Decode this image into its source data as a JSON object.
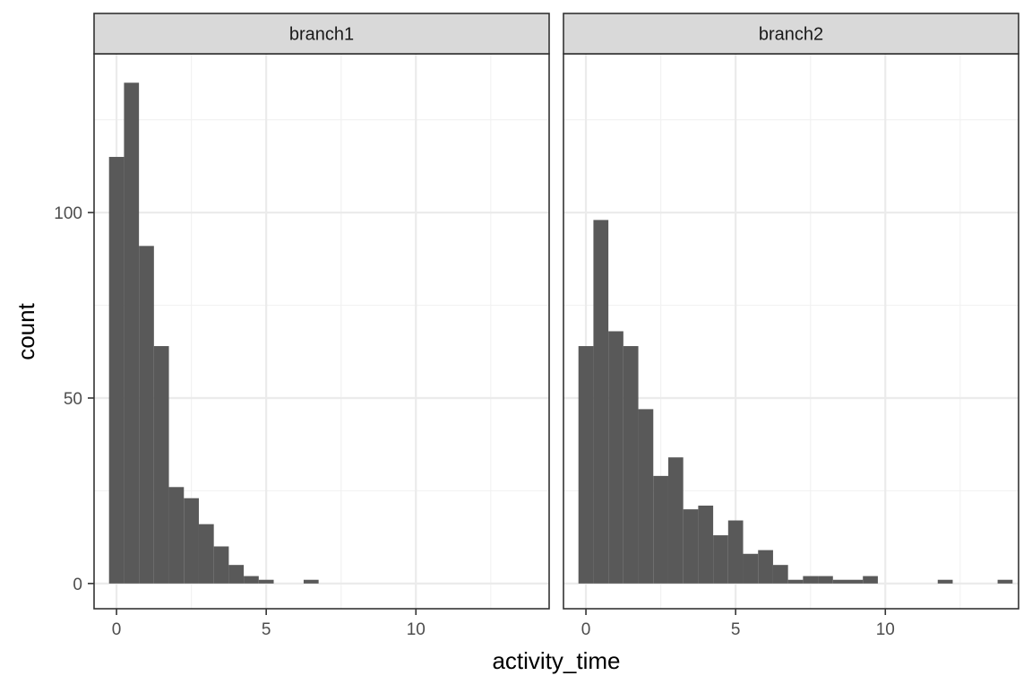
{
  "chart_data": {
    "type": "bar",
    "subtype": "faceted-histogram",
    "xlabel": "activity_time",
    "ylabel": "count",
    "xlim": [
      -0.75,
      14.45
    ],
    "ylim": [
      -6.8,
      142.8
    ],
    "x_ticks": [
      0,
      5,
      10
    ],
    "y_ticks": [
      0,
      50,
      100
    ],
    "bin_width": 0.5,
    "grid": true,
    "bar_color": "#595959",
    "strip_fill": "#d9d9d9",
    "panel_border": "#333333",
    "grid_major_color": "#ebebeb",
    "grid_minor_color": "#f2f2f2",
    "facets": [
      {
        "name": "branch1",
        "bins": [
          {
            "x": 0.0,
            "count": 115
          },
          {
            "x": 0.5,
            "count": 135
          },
          {
            "x": 1.0,
            "count": 91
          },
          {
            "x": 1.5,
            "count": 64
          },
          {
            "x": 2.0,
            "count": 26
          },
          {
            "x": 2.5,
            "count": 23
          },
          {
            "x": 3.0,
            "count": 16
          },
          {
            "x": 3.5,
            "count": 10
          },
          {
            "x": 4.0,
            "count": 5
          },
          {
            "x": 4.5,
            "count": 2
          },
          {
            "x": 5.0,
            "count": 1
          },
          {
            "x": 5.5,
            "count": 0
          },
          {
            "x": 6.0,
            "count": 0
          },
          {
            "x": 6.5,
            "count": 1
          }
        ]
      },
      {
        "name": "branch2",
        "bins": [
          {
            "x": 0.0,
            "count": 64
          },
          {
            "x": 0.5,
            "count": 98
          },
          {
            "x": 1.0,
            "count": 68
          },
          {
            "x": 1.5,
            "count": 64
          },
          {
            "x": 2.0,
            "count": 47
          },
          {
            "x": 2.5,
            "count": 29
          },
          {
            "x": 3.0,
            "count": 34
          },
          {
            "x": 3.5,
            "count": 20
          },
          {
            "x": 4.0,
            "count": 21
          },
          {
            "x": 4.5,
            "count": 13
          },
          {
            "x": 5.0,
            "count": 17
          },
          {
            "x": 5.5,
            "count": 8
          },
          {
            "x": 6.0,
            "count": 9
          },
          {
            "x": 6.5,
            "count": 5
          },
          {
            "x": 7.0,
            "count": 1
          },
          {
            "x": 7.5,
            "count": 2
          },
          {
            "x": 8.0,
            "count": 2
          },
          {
            "x": 8.5,
            "count": 1
          },
          {
            "x": 9.0,
            "count": 1
          },
          {
            "x": 9.5,
            "count": 2
          },
          {
            "x": 10.0,
            "count": 0
          },
          {
            "x": 10.5,
            "count": 0
          },
          {
            "x": 11.0,
            "count": 0
          },
          {
            "x": 11.5,
            "count": 0
          },
          {
            "x": 12.0,
            "count": 1
          },
          {
            "x": 12.5,
            "count": 0
          },
          {
            "x": 13.0,
            "count": 0
          },
          {
            "x": 13.5,
            "count": 0
          },
          {
            "x": 14.0,
            "count": 1
          }
        ]
      }
    ]
  }
}
